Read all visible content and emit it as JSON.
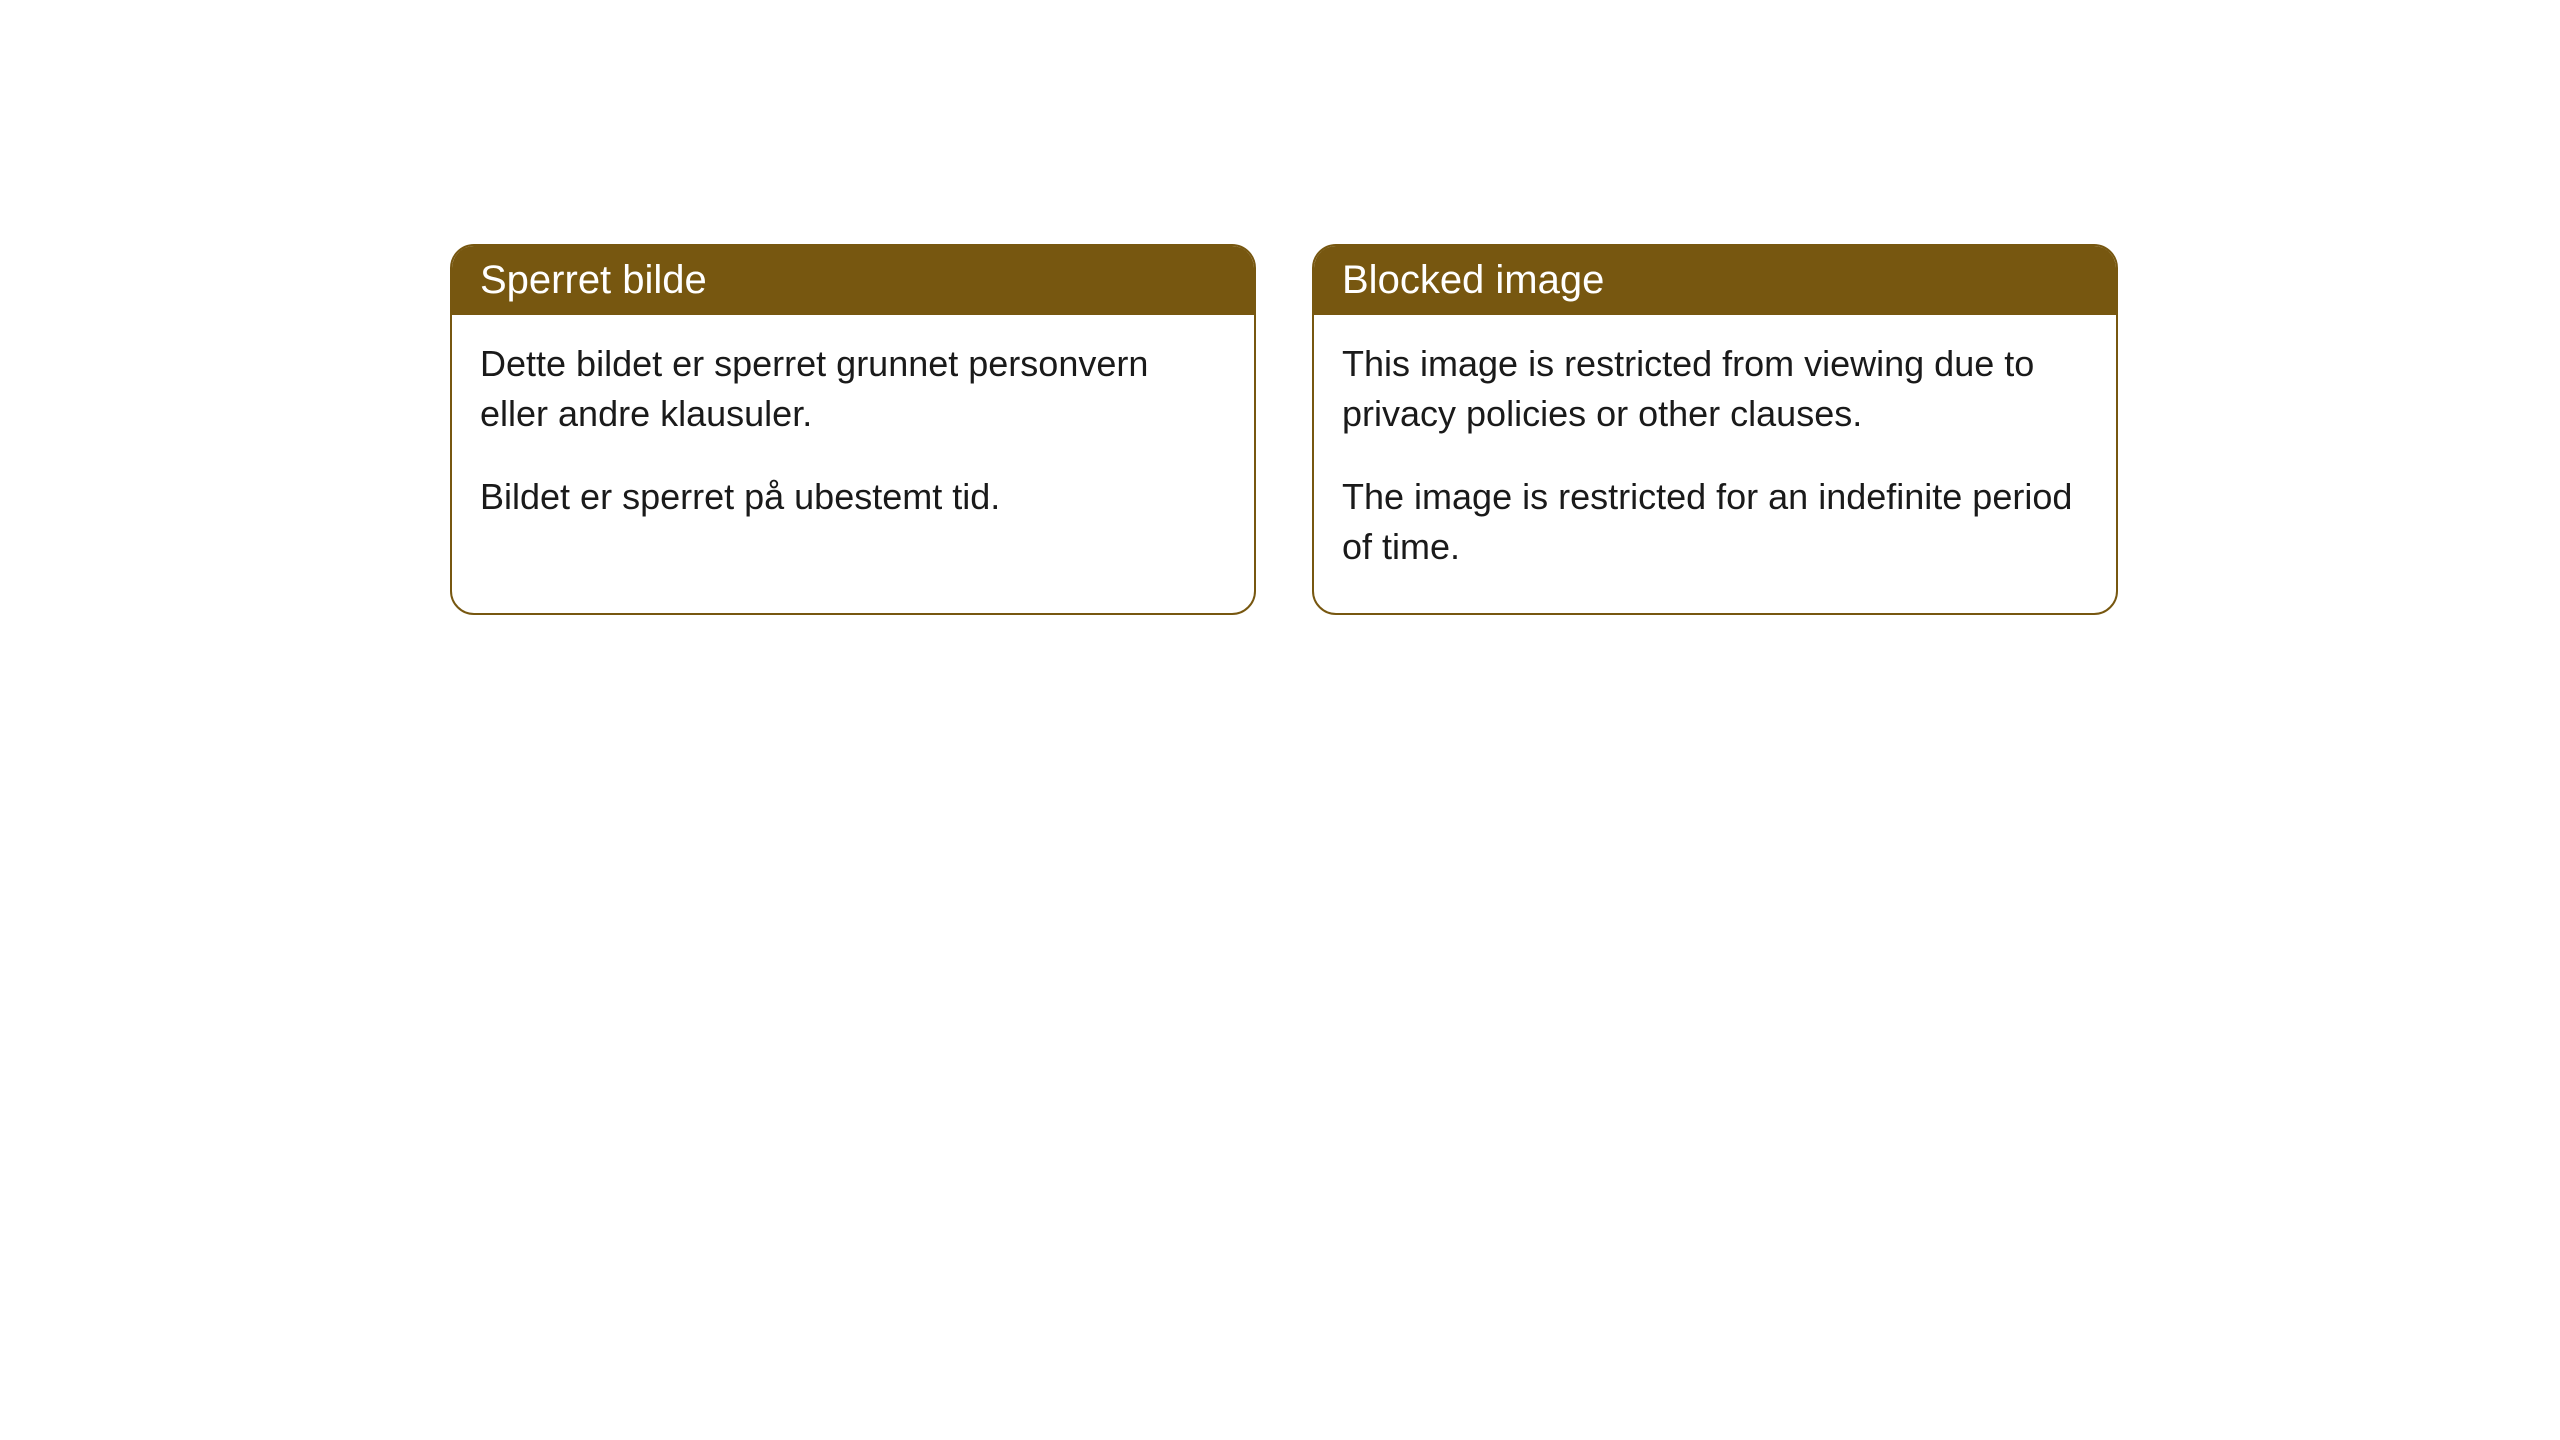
{
  "cards": [
    {
      "title": "Sperret bilde",
      "paragraph1": "Dette bildet er sperret grunnet personvern eller andre klausuler.",
      "paragraph2": "Bildet er sperret på ubestemt tid."
    },
    {
      "title": "Blocked image",
      "paragraph1": "This image is restricted from viewing due to privacy policies or other clauses.",
      "paragraph2": "The image is restricted for an indefinite period of time."
    }
  ],
  "styling": {
    "header_background_color": "#775710",
    "header_text_color": "#ffffff",
    "border_color": "#775710",
    "body_text_color": "#1a1a1a",
    "card_background_color": "#ffffff",
    "page_background_color": "#ffffff",
    "border_radius": 24,
    "title_fontsize": 40,
    "body_fontsize": 36
  }
}
